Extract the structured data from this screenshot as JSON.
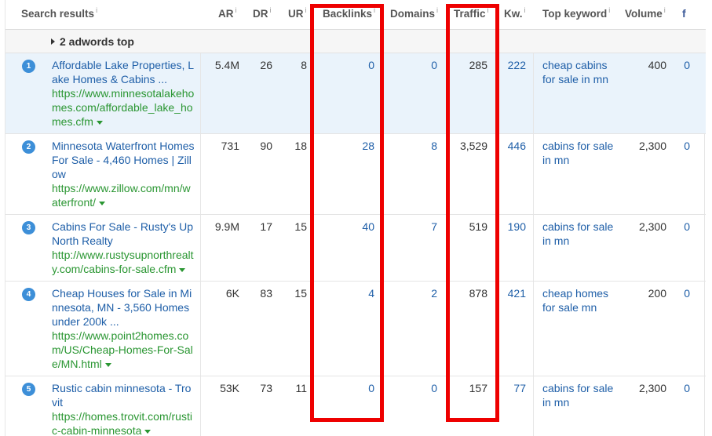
{
  "columns": {
    "search_results": "Search results",
    "ar": "AR",
    "dr": "DR",
    "ur": "UR",
    "backlinks": "Backlinks",
    "domains": "Domains",
    "traffic": "Traffic",
    "kw": "Kw.",
    "top_keyword": "Top keyword",
    "volume": "Volume",
    "info_mark": "i",
    "facebook": "f"
  },
  "group": {
    "label": "2 adwords top"
  },
  "rows": [
    {
      "num": "1",
      "title": "Affordable Lake Properties, Lake Homes & Cabins ...",
      "url": "https://www.minnesotalakehomes.com/affordable_lake_homes.cfm",
      "ar": "5.4M",
      "dr": "26",
      "ur": "8",
      "backlinks": "0",
      "domains": "0",
      "traffic": "285",
      "kw": "222",
      "top_keyword": "cheap cabins for sale in mn",
      "volume": "400",
      "fb": "0"
    },
    {
      "num": "2",
      "title": "Minnesota Waterfront Homes For Sale - 4,460 Homes | Zillow",
      "url": "https://www.zillow.com/mn/waterfront/",
      "ar": "731",
      "dr": "90",
      "ur": "18",
      "backlinks": "28",
      "domains": "8",
      "traffic": "3,529",
      "kw": "446",
      "top_keyword": "cabins for sale in mn",
      "volume": "2,300",
      "fb": "0"
    },
    {
      "num": "3",
      "title": "Cabins For Sale - Rusty's Up North Realty",
      "url": "http://www.rustysupnorthrealty.com/cabins-for-sale.cfm",
      "ar": "9.9M",
      "dr": "17",
      "ur": "15",
      "backlinks": "40",
      "domains": "7",
      "traffic": "519",
      "kw": "190",
      "top_keyword": "cabins for sale in mn",
      "volume": "2,300",
      "fb": "0"
    },
    {
      "num": "4",
      "title": "Cheap Houses for Sale in Minnesota, MN - 3,560 Homes under 200k ...",
      "url": "https://www.point2homes.com/US/Cheap-Homes-For-Sale/MN.html",
      "ar": "6K",
      "dr": "83",
      "ur": "15",
      "backlinks": "4",
      "domains": "2",
      "traffic": "878",
      "kw": "421",
      "top_keyword": "cheap homes for sale mn",
      "volume": "200",
      "fb": "0"
    },
    {
      "num": "5",
      "title": "Rustic cabin minnesota - Trovit",
      "url": "https://homes.trovit.com/rustic-cabin-minnesota",
      "ar": "53K",
      "dr": "73",
      "ur": "11",
      "backlinks": "0",
      "domains": "0",
      "traffic": "157",
      "kw": "77",
      "top_keyword": "cabins for sale in mn",
      "volume": "2,300",
      "fb": "0"
    }
  ],
  "colors": {
    "link_blue": "#1f5fa8",
    "url_green": "#2a9632",
    "badge_blue": "#3d8fd8",
    "highlight_row": "#eaf3fb",
    "annotation_red": "#ee0000"
  }
}
